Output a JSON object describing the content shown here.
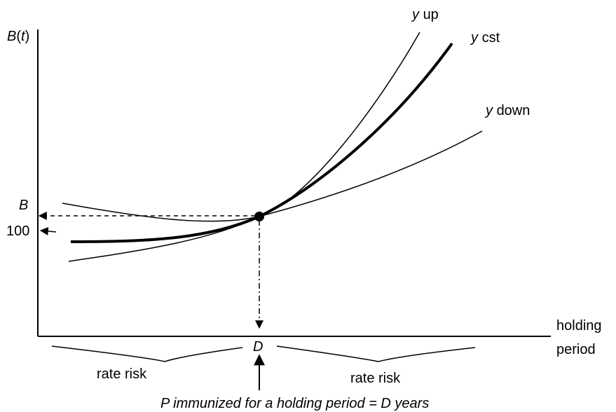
{
  "colors": {
    "ink": "#000000",
    "background": "#ffffff"
  },
  "y_axis": {
    "label_var": "B",
    "label_arg": "t"
  },
  "x_axis": {
    "label_line1": "holding",
    "label_line2": "period"
  },
  "ticks": {
    "b_level": "B",
    "par_level": "100",
    "horizon": "D"
  },
  "curves": [
    {
      "id": "y-up",
      "var": "y",
      "label": "up",
      "style": "thin"
    },
    {
      "id": "y-cst",
      "var": "y",
      "label": "cst",
      "style": "thick"
    },
    {
      "id": "y-down",
      "var": "y",
      "label": "down",
      "style": "thin"
    }
  ],
  "regions": {
    "left": "rate risk",
    "right": "rate risk"
  },
  "caption": {
    "text": "P immunized for a holding period = D years"
  }
}
